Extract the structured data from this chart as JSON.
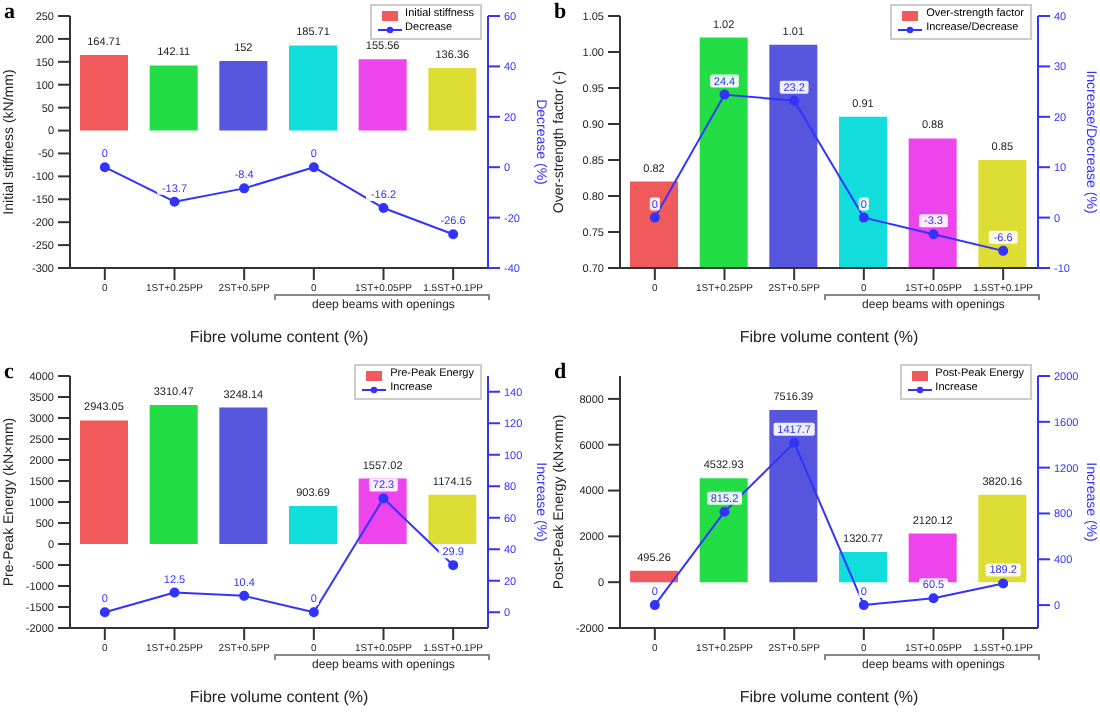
{
  "chart_data": [
    {
      "type": "bar",
      "title": "a",
      "xlabel": "Fibre volume content (%)",
      "ylabel": "Initial stiffness (kN/mm)",
      "y2label": "Decrease (%)",
      "categories": [
        "0",
        "1ST+0.25PP",
        "2ST+0.5PP",
        "0",
        "1ST+0.05PP",
        "1.5ST+0.1PP"
      ],
      "series": [
        {
          "name": "Initial stiffness",
          "colors": [
            "#f05a5a",
            "#22dd44",
            "#5555dd",
            "#11dddd",
            "#ee44ee",
            "#dddd33"
          ],
          "values": [
            164.71,
            142.11,
            152,
            185.71,
            155.56,
            136.36
          ]
        },
        {
          "type": "line",
          "axis": "y2",
          "name": "Decrease",
          "color": "#3333ff",
          "marker": "circle",
          "values": [
            0,
            -13.7,
            -8.4,
            0,
            -16.2,
            -26.6
          ]
        }
      ],
      "ylim": [
        -300,
        250
      ],
      "yticks": [
        -300,
        -250,
        -200,
        -150,
        -100,
        -50,
        0,
        50,
        100,
        150,
        200,
        250
      ],
      "y2lim": [
        -40,
        60
      ],
      "y2ticks": [
        -40,
        -20,
        0,
        20,
        40,
        60
      ],
      "legend": "top right",
      "data_labels": true,
      "annotations": [
        "deep beams with openings"
      ]
    },
    {
      "type": "bar",
      "title": "b",
      "xlabel": "Fibre volume content (%)",
      "ylabel": "Over-strength factor (-)",
      "y2label": "Increase/Decrease (%)",
      "categories": [
        "0",
        "1ST+0.25PP",
        "2ST+0.5PP",
        "0",
        "1ST+0.05PP",
        "1.5ST+0.1PP"
      ],
      "series": [
        {
          "name": "Over-strength factor",
          "colors": [
            "#f05a5a",
            "#22dd44",
            "#5555dd",
            "#11dddd",
            "#ee44ee",
            "#dddd33"
          ],
          "values": [
            0.82,
            1.02,
            1.01,
            0.91,
            0.88,
            0.85
          ]
        },
        {
          "type": "line",
          "axis": "y2",
          "name": "Increase/Decrease",
          "color": "#3333ff",
          "marker": "circle",
          "values": [
            0,
            24.4,
            23.2,
            0,
            -3.3,
            -6.6
          ]
        }
      ],
      "ylim": [
        0.7,
        1.05
      ],
      "yticks": [
        {
          "value": 0.7,
          "label": "0.70"
        },
        0.75,
        {
          "value": 0.8,
          "label": "0.80"
        },
        0.85,
        {
          "value": 0.9,
          "label": "0.90"
        },
        0.95,
        {
          "value": 1,
          "label": "1.00"
        },
        1.05
      ],
      "y2lim": [
        -10,
        40
      ],
      "y2ticks": [
        -10,
        0,
        10,
        20,
        30,
        40
      ],
      "legend": "top right",
      "data_labels": true,
      "annotations": [
        "deep beams with openings"
      ]
    },
    {
      "type": "bar",
      "title": "c",
      "xlabel": "Fibre volume content (%)",
      "ylabel": "Pre-Peak Energy (kN×mm)",
      "y2label": "Increase (%)",
      "categories": [
        "0",
        "1ST+0.25PP",
        "2ST+0.5PP",
        "0",
        "1ST+0.05PP",
        "1.5ST+0.1PP"
      ],
      "series": [
        {
          "name": "Pre-Peak Energy",
          "colors": [
            "#f05a5a",
            "#22dd44",
            "#5555dd",
            "#11dddd",
            "#ee44ee",
            "#dddd33"
          ],
          "values": [
            2943.05,
            3310.47,
            3248.14,
            903.69,
            1557.02,
            1174.15
          ]
        },
        {
          "type": "line",
          "axis": "y2",
          "name": "Increase",
          "color": "#3333ff",
          "marker": "circle",
          "values": [
            0,
            12.5,
            10.4,
            0,
            72.3,
            29.9
          ]
        }
      ],
      "ylim": [
        -2000,
        4000
      ],
      "yticks": [
        -2000,
        -1500,
        -1000,
        -500,
        0,
        500,
        1000,
        1500,
        2000,
        2500,
        3000,
        3500,
        4000
      ],
      "y2lim": [
        -10,
        150
      ],
      "y2ticks": [
        0,
        20,
        40,
        60,
        80,
        100,
        120,
        140
      ],
      "legend": "top right",
      "data_labels": true,
      "annotations": [
        "deep beams with openings"
      ]
    },
    {
      "type": "bar",
      "title": "d",
      "xlabel": "Fibre volume content (%)",
      "ylabel": "Post-Peak Energy (kN×mm)",
      "y2label": "Increase (%)",
      "categories": [
        "0",
        "1ST+0.25PP",
        "2ST+0.5PP",
        "0",
        "1ST+0.05PP",
        "1.5ST+0.1PP"
      ],
      "series": [
        {
          "name": "Post-Peak Energy",
          "colors": [
            "#f05a5a",
            "#22dd44",
            "#5555dd",
            "#11dddd",
            "#ee44ee",
            "#dddd33"
          ],
          "values": [
            495.26,
            4532.93,
            7516.39,
            1320.77,
            2120.12,
            3820.16
          ]
        },
        {
          "type": "line",
          "axis": "y2",
          "name": "Increase",
          "color": "#3333ff",
          "marker": "circle",
          "values": [
            0,
            815.2,
            1417.7,
            0,
            60.5,
            189.2
          ]
        }
      ],
      "ylim": [
        -2000,
        9000
      ],
      "yticks": [
        -2000,
        0,
        2000,
        4000,
        6000,
        8000
      ],
      "y2lim": [
        -200,
        2000
      ],
      "y2ticks": [
        0,
        400,
        800,
        1200,
        1600,
        2000
      ],
      "legend": "top right",
      "data_labels": true,
      "annotations": [
        "deep beams with openings"
      ]
    }
  ]
}
